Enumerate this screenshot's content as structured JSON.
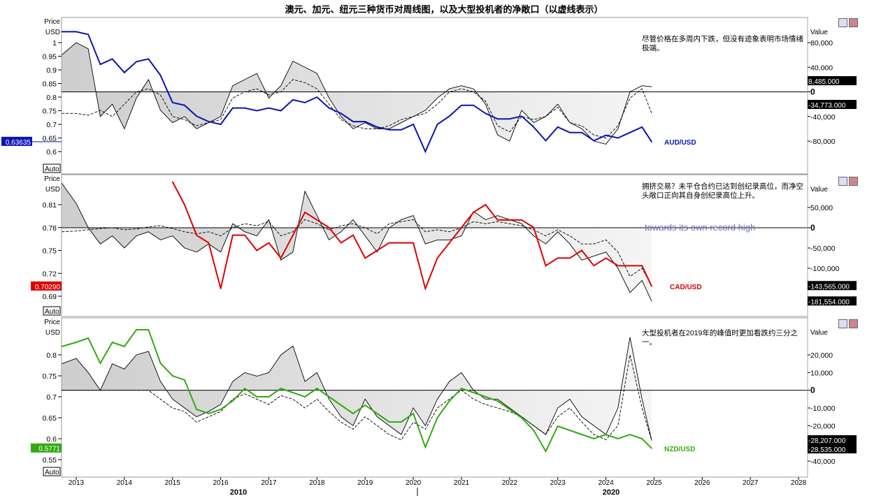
{
  "title": "澳元、加元、纽元三种货币对周线图，以及大型投机者的净敞口（以虚线表示）",
  "chart_data": [
    {
      "type": "line",
      "pair": "AUD/USD",
      "color": "#0a14b4",
      "left_axis": {
        "label1": "Price",
        "label2": "USD",
        "ticks": [
          1,
          0.95,
          0.9,
          0.85,
          0.8,
          0.75,
          0.7,
          0.65,
          0.6
        ],
        "tick_labels": [
          "1",
          "0.95",
          "0.9",
          "0.85",
          "0.8",
          "0.75",
          "0.7",
          "0.65",
          "0.6"
        ]
      },
      "right_axis": {
        "label": "Value",
        "ticks": [
          80000,
          40000,
          0,
          -40000,
          -80000
        ],
        "tick_labels": [
          "80,000",
          "40,000",
          "0",
          "-40,000",
          "-80,000"
        ]
      },
      "last_price": "0.63635",
      "last_values": [
        "8,485.000",
        "-34,773.000"
      ],
      "last_value_nums": [
        8485,
        -34773
      ],
      "annotation": "尽管价格在多周内下跌，但没有迹象表明市场情绪极端。",
      "auto_label": "Auto",
      "x": [
        2012.7,
        2013.0,
        2013.25,
        2013.5,
        2013.75,
        2014.0,
        2014.25,
        2014.5,
        2014.75,
        2015.0,
        2015.25,
        2015.5,
        2015.75,
        2016.0,
        2016.25,
        2016.5,
        2016.75,
        2017.0,
        2017.25,
        2017.5,
        2017.75,
        2018.0,
        2018.25,
        2018.5,
        2018.75,
        2019.0,
        2019.25,
        2019.5,
        2019.75,
        2020.0,
        2020.25,
        2020.5,
        2020.75,
        2021.0,
        2021.25,
        2021.5,
        2021.75,
        2022.0,
        2022.25,
        2022.5,
        2022.75,
        2023.0,
        2023.25,
        2023.5,
        2023.75,
        2024.0,
        2024.25,
        2024.5,
        2024.75,
        2024.95
      ],
      "price": [
        1.04,
        1.04,
        1.03,
        0.92,
        0.94,
        0.89,
        0.93,
        0.94,
        0.88,
        0.78,
        0.77,
        0.73,
        0.71,
        0.7,
        0.76,
        0.76,
        0.75,
        0.76,
        0.75,
        0.79,
        0.78,
        0.8,
        0.76,
        0.74,
        0.71,
        0.71,
        0.69,
        0.68,
        0.68,
        0.7,
        0.6,
        0.7,
        0.73,
        0.77,
        0.77,
        0.74,
        0.72,
        0.72,
        0.73,
        0.69,
        0.64,
        0.69,
        0.67,
        0.67,
        0.64,
        0.66,
        0.65,
        0.67,
        0.69,
        0.636
      ],
      "net": [
        60000,
        80000,
        70000,
        -40000,
        -20000,
        -60000,
        -10000,
        20000,
        -30000,
        -50000,
        -40000,
        -60000,
        -50000,
        -40000,
        10000,
        20000,
        30000,
        -10000,
        10000,
        50000,
        40000,
        30000,
        -10000,
        -40000,
        -60000,
        -50000,
        -60000,
        -60000,
        -50000,
        -40000,
        -30000,
        -10000,
        5000,
        10000,
        5000,
        -20000,
        -70000,
        -80000,
        -30000,
        -50000,
        -40000,
        -20000,
        -50000,
        -60000,
        -80000,
        -85000,
        -60000,
        0,
        10000,
        8485
      ],
      "spec": [
        -35000,
        -35000,
        -38000,
        -30000,
        -40000,
        -20000,
        0,
        5000,
        -5000,
        -40000,
        -45000,
        -55000,
        -50000,
        -45000,
        -10000,
        0,
        5000,
        -5000,
        0,
        20000,
        15000,
        5000,
        -20000,
        -45000,
        -55000,
        -60000,
        -60000,
        -55000,
        -45000,
        -40000,
        -35000,
        -20000,
        0,
        5000,
        0,
        -15000,
        -55000,
        -65000,
        -40000,
        -45000,
        -40000,
        -25000,
        -50000,
        -55000,
        -70000,
        -75000,
        -55000,
        -10000,
        5000,
        -34773
      ]
    },
    {
      "type": "line",
      "pair": "CAD/USD",
      "color": "#dd0000",
      "left_axis": {
        "label1": "Price",
        "label2": "USD",
        "ticks": [
          0.81,
          0.78,
          0.75,
          0.72,
          0.69
        ],
        "tick_labels": [
          "0.81",
          "0.78",
          "0.75",
          "0.72",
          "0.69"
        ]
      },
      "right_axis": {
        "label": "Value",
        "ticks": [
          50000,
          0,
          -50000,
          -100000
        ],
        "tick_labels": [
          "50,000",
          "0",
          "-50,000",
          "-100,000"
        ]
      },
      "last_price": "0.70290",
      "last_values": [
        "-143,565.000",
        "-181,554.000"
      ],
      "last_value_nums": [
        -143565,
        -181554
      ],
      "annotation": "拥挤交易？未平仓合约已达到创纪录高位，而净空头敞口正向其自身创纪录高位上升。",
      "ghost_text": "towards its own record high",
      "auto_label": "Auto",
      "x": [
        2012.7,
        2013.0,
        2013.25,
        2013.5,
        2013.75,
        2014.0,
        2014.25,
        2014.5,
        2014.75,
        2015.0,
        2015.25,
        2015.5,
        2015.75,
        2016.0,
        2016.25,
        2016.5,
        2016.75,
        2017.0,
        2017.25,
        2017.5,
        2017.75,
        2018.0,
        2018.25,
        2018.5,
        2018.75,
        2019.0,
        2019.25,
        2019.5,
        2019.75,
        2020.0,
        2020.25,
        2020.5,
        2020.75,
        2021.0,
        2021.25,
        2021.5,
        2021.75,
        2022.0,
        2022.25,
        2022.5,
        2022.75,
        2023.0,
        2023.25,
        2023.5,
        2023.75,
        2024.0,
        2024.25,
        2024.5,
        2024.75,
        2024.95
      ],
      "price": [
        null,
        null,
        null,
        null,
        null,
        null,
        null,
        null,
        null,
        0.84,
        0.81,
        0.77,
        0.76,
        0.7,
        0.77,
        0.77,
        0.75,
        0.76,
        0.74,
        0.77,
        0.8,
        0.79,
        0.78,
        0.76,
        0.77,
        0.74,
        0.75,
        0.76,
        0.76,
        0.76,
        0.7,
        0.74,
        0.76,
        0.78,
        0.8,
        0.81,
        0.79,
        0.79,
        0.79,
        0.78,
        0.73,
        0.74,
        0.74,
        0.75,
        0.73,
        0.74,
        0.73,
        0.73,
        0.73,
        0.703
      ],
      "net": [
        110000,
        60000,
        0,
        -40000,
        -20000,
        -50000,
        -20000,
        -10000,
        -30000,
        -20000,
        -50000,
        -60000,
        -40000,
        -60000,
        10000,
        -10000,
        -20000,
        20000,
        -80000,
        -60000,
        90000,
        30000,
        -30000,
        -10000,
        20000,
        -20000,
        -60000,
        0,
        20000,
        30000,
        -40000,
        -30000,
        -30000,
        -20000,
        40000,
        20000,
        30000,
        20000,
        10000,
        -20000,
        -40000,
        -10000,
        -40000,
        -80000,
        -70000,
        -60000,
        -100000,
        -160000,
        -130000,
        -181554
      ],
      "spec": [
        -10000,
        -8000,
        -5000,
        -2000,
        0,
        -5000,
        -3000,
        2000,
        5000,
        -2000,
        -10000,
        -15000,
        -10000,
        -20000,
        0,
        10000,
        5000,
        15000,
        -20000,
        -10000,
        20000,
        10000,
        -5000,
        5000,
        10000,
        0,
        -15000,
        10000,
        15000,
        20000,
        -10000,
        -5000,
        -10000,
        0,
        15000,
        10000,
        15000,
        10000,
        5000,
        -5000,
        -20000,
        -5000,
        -20000,
        -40000,
        -40000,
        -30000,
        -60000,
        -120000,
        -100000,
        -143565
      ]
    },
    {
      "type": "line",
      "pair": "NZD/USD",
      "color": "#33aa11",
      "left_axis": {
        "label1": "Price",
        "label2": "USD",
        "ticks": [
          0.8,
          0.75,
          0.7,
          0.65,
          0.6,
          0.55
        ],
        "tick_labels": [
          "0.8",
          "0.75",
          "0.7",
          "0.65",
          "0.6",
          "0.55"
        ]
      },
      "right_axis": {
        "label": "Value",
        "ticks": [
          20000,
          10000,
          0,
          -10000,
          -20000,
          -40000
        ],
        "tick_labels": [
          "20,000",
          "10,000",
          "0",
          "-10,000",
          "-20,000",
          "-40,000"
        ]
      },
      "last_price": "0.5771",
      "last_values": [
        "-28,207.000",
        "-28,535.000"
      ],
      "last_value_nums": [
        -28207,
        -28535
      ],
      "annotation": "大型投机者在2019年的峰值时更加看跌约三分之一。",
      "auto_label": "Auto",
      "x": [
        2012.7,
        2013.0,
        2013.25,
        2013.5,
        2013.75,
        2014.0,
        2014.25,
        2014.5,
        2014.75,
        2015.0,
        2015.25,
        2015.5,
        2015.75,
        2016.0,
        2016.25,
        2016.5,
        2016.75,
        2017.0,
        2017.25,
        2017.5,
        2017.75,
        2018.0,
        2018.25,
        2018.5,
        2018.75,
        2019.0,
        2019.25,
        2019.5,
        2019.75,
        2020.0,
        2020.25,
        2020.5,
        2020.75,
        2021.0,
        2021.25,
        2021.5,
        2021.75,
        2022.0,
        2022.25,
        2022.5,
        2022.75,
        2023.0,
        2023.25,
        2023.5,
        2023.75,
        2024.0,
        2024.25,
        2024.5,
        2024.75,
        2024.95
      ],
      "price": [
        0.82,
        0.83,
        0.84,
        0.78,
        0.83,
        0.82,
        0.86,
        0.86,
        0.78,
        0.75,
        0.74,
        0.67,
        0.66,
        0.67,
        0.69,
        0.72,
        0.7,
        0.7,
        0.72,
        0.71,
        0.7,
        0.72,
        0.7,
        0.68,
        0.66,
        0.68,
        0.66,
        0.64,
        0.64,
        0.66,
        0.58,
        0.65,
        0.69,
        0.72,
        0.71,
        0.7,
        0.69,
        0.67,
        0.65,
        0.62,
        0.57,
        0.63,
        0.62,
        0.61,
        0.6,
        0.61,
        0.6,
        0.61,
        0.6,
        0.577
      ],
      "net": [
        15000,
        18000,
        10000,
        0,
        15000,
        12000,
        20000,
        22000,
        5000,
        -5000,
        -10000,
        -15000,
        -12000,
        -8000,
        5000,
        10000,
        8000,
        10000,
        20000,
        25000,
        5000,
        10000,
        -5000,
        -15000,
        -20000,
        -5000,
        -15000,
        -20000,
        -25000,
        -10000,
        -20000,
        -5000,
        5000,
        10000,
        0,
        -5000,
        -5000,
        -10000,
        -15000,
        -20000,
        -25000,
        -10000,
        -5000,
        -15000,
        -20000,
        -25000,
        -10000,
        30000,
        -5000,
        -28207
      ],
      "spec": [
        0,
        0,
        0,
        0,
        0,
        0,
        0,
        0,
        -5000,
        -10000,
        -12000,
        -18000,
        -15000,
        -12000,
        -5000,
        -2000,
        -5000,
        -8000,
        -3000,
        -5000,
        -10000,
        -5000,
        -12000,
        -18000,
        -22000,
        -15000,
        -20000,
        -25000,
        -28000,
        -18000,
        -22000,
        -10000,
        -5000,
        0,
        -5000,
        -8000,
        -10000,
        -12000,
        -15000,
        -20000,
        -25000,
        -15000,
        -10000,
        -18000,
        -25000,
        -28000,
        -20000,
        20000,
        -10000,
        -28535
      ]
    },
    {
      "type": "axis",
      "x_tick_labels": [
        "2013",
        "2014",
        "2015",
        "2016",
        "2017",
        "2018",
        "2019",
        "2020",
        "2021",
        "2022",
        "2023",
        "2024",
        "2025",
        "2026",
        "2027",
        "2028"
      ],
      "x_ticks": [
        2013,
        2014,
        2015,
        2016,
        2017,
        2018,
        2019,
        2020,
        2021,
        2022,
        2023,
        2024,
        2025,
        2026,
        2027,
        2028
      ],
      "decade_labels": [
        "2010",
        "2020"
      ]
    }
  ]
}
